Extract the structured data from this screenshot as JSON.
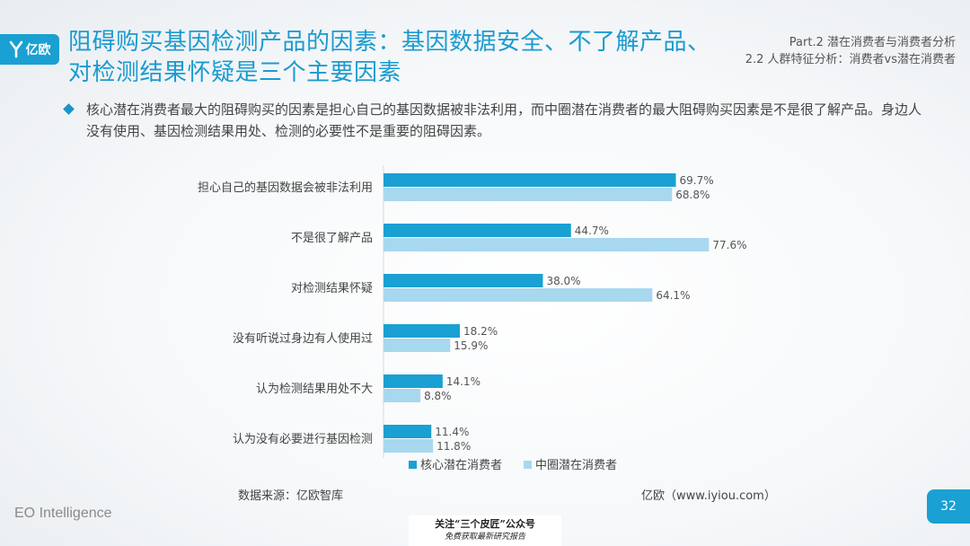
{
  "logo": {
    "text": "亿欧",
    "icon": "yiou-y-icon"
  },
  "title": "阻碍购买基因检测产品的因素：基因数据安全、不了解产品、对检测结果怀疑是三个主要因素",
  "part": {
    "line1": "Part.2  潜在消费者与消费者分析",
    "line2": "2.2 人群特征分析：消费者vs潜在消费者"
  },
  "bullet": "核心潜在消费者最大的阻碍购买的因素是担心自己的基因数据被非法利用，而中圈潜在消费者的最大阻碍购买因素是不是很了解产品。身边人没有使用、基因检测结果用处、检测的必要性不是重要的阻碍因素。",
  "chart_data": {
    "type": "bar",
    "orientation": "horizontal",
    "categories": [
      "担心自己的基因数据会被非法利用",
      "不是很了解产品",
      "对检测结果怀疑",
      "没有听说过身边有人使用过",
      "认为检测结果用处不大",
      "认为没有必要进行基因检测"
    ],
    "series": [
      {
        "name": "核心潜在消费者",
        "values": [
          69.7,
          44.7,
          38.0,
          18.2,
          14.1,
          11.4
        ],
        "color": "#1aa0d2"
      },
      {
        "name": "中圈潜在消费者",
        "values": [
          68.8,
          77.6,
          64.1,
          15.9,
          8.8,
          11.8
        ],
        "color": "#a8d8ee"
      }
    ],
    "value_suffix": "%",
    "xlim": [
      0,
      100
    ],
    "legend_position": "bottom",
    "grid": false
  },
  "source": "数据来源：亿欧智库",
  "site": "亿欧（www.iyiou.com）",
  "brand": "EO Intelligence",
  "page": "32",
  "watermark": {
    "line1": "关注“三个皮匠”公众号",
    "line2": "免费获取最新研究报告"
  }
}
